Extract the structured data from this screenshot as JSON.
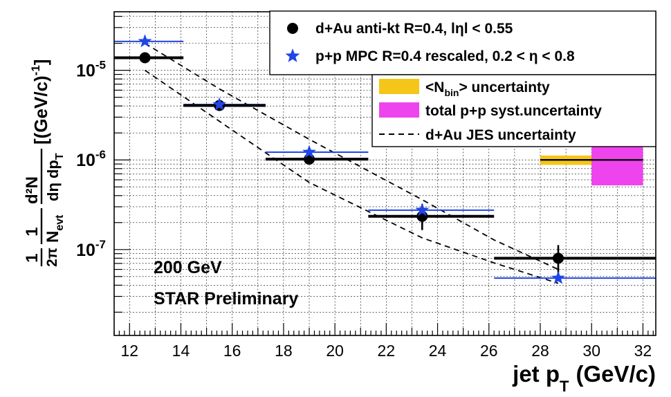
{
  "chart_data": {
    "type": "scatter",
    "xlabel": "jet p",
    "xlabel_sub": "T",
    "xlabel_units": "(GeV/c)",
    "ylabel": {
      "frac1_num": "1",
      "frac1_den": "2π",
      "frac2_num": "1",
      "frac2_den": "N",
      "frac2_den_sub": "evt",
      "frac3_num": "d²N",
      "frac3_den": "dη dp",
      "frac3_den_sub": "T",
      "units": "[(GeV/c)",
      "units_exp": "-1",
      "units_close": "]"
    },
    "xlim": [
      11.4,
      32.5
    ],
    "ylim": [
      1.1e-08,
      4.5e-05
    ],
    "yscale": "log",
    "grid": true,
    "x_ticks": [
      12,
      14,
      16,
      18,
      20,
      22,
      24,
      26,
      28,
      30,
      32
    ],
    "x_tick_labels": [
      "12",
      "14",
      "16",
      "18",
      "20",
      "22",
      "24",
      "26",
      "28",
      "30",
      "32"
    ],
    "y_major_ticks": [
      1e-07,
      1e-06,
      1e-05
    ],
    "y_tick_labels": [
      {
        "base": "10",
        "exp": "-7"
      },
      {
        "base": "10",
        "exp": "-6"
      },
      {
        "base": "10",
        "exp": "-5"
      }
    ],
    "series": [
      {
        "name": "d+Au anti-kt R=0.4, lηl < 0.55",
        "marker": "circle",
        "color": "#000000",
        "points": [
          {
            "x": 12.6,
            "y": 1.38e-05,
            "xlo": 11.4,
            "xhi": 14.1
          },
          {
            "x": 15.5,
            "y": 4.05e-06,
            "xlo": 14.1,
            "xhi": 17.3
          },
          {
            "x": 19.0,
            "y": 1.02e-06,
            "xlo": 17.3,
            "xhi": 21.3
          },
          {
            "x": 23.4,
            "y": 2.35e-07,
            "xlo": 21.3,
            "xhi": 26.2,
            "ylo": 1.65e-07,
            "yhi": 3.2e-07
          },
          {
            "x": 28.7,
            "y": 8e-08,
            "xlo": 26.2,
            "xhi": 32.5,
            "ylo": 5.5e-08,
            "yhi": 1.12e-07
          }
        ]
      },
      {
        "name": "p+p MPC R=0.4 rescaled, 0.2 < η < 0.8",
        "marker": "star",
        "color": "#2046e6",
        "points": [
          {
            "x": 12.6,
            "y": 2.1e-05,
            "xlo": 11.4,
            "xhi": 14.1
          },
          {
            "x": 15.5,
            "y": 4.15e-06,
            "xlo": 14.1,
            "xhi": 17.3
          },
          {
            "x": 19.0,
            "y": 1.22e-06,
            "xlo": 17.3,
            "xhi": 21.3
          },
          {
            "x": 23.4,
            "y": 2.75e-07,
            "xlo": 21.3,
            "xhi": 26.2,
            "ylo": 2.5e-07,
            "yhi": 3.05e-07
          },
          {
            "x": 28.7,
            "y": 4.8e-08,
            "xlo": 26.2,
            "xhi": 32.5
          }
        ]
      }
    ],
    "jes_band": {
      "name": "d+Au JES uncertainty",
      "upper": [
        [
          12.6,
          2e-05
        ],
        [
          15.5,
          6.2e-06
        ],
        [
          19.0,
          1.7e-06
        ],
        [
          23.4,
          3.6e-07
        ],
        [
          26.2,
          1.28e-07
        ],
        [
          28.7,
          6e-08
        ]
      ],
      "lower": [
        [
          12.6,
          1e-05
        ],
        [
          15.5,
          2.7e-06
        ],
        [
          19.0,
          5.6e-07
        ],
        [
          23.4,
          1.35e-07
        ],
        [
          26.2,
          7.1e-08
        ],
        [
          28.7,
          4.2e-08
        ]
      ]
    },
    "norm_uncertainty": {
      "y": 1e-06,
      "nbin_box": {
        "label": "<N_bin> uncertainty",
        "x0": 28.0,
        "x1": 30.0,
        "ylo": 8.8e-07,
        "yhi": 1.12e-06,
        "color": "#f5c518"
      },
      "pp_box": {
        "label": "total p+p syst.uncertainty",
        "x0": 30.0,
        "x1": 32.0,
        "ylo": 5.2e-07,
        "yhi": 1.55e-06,
        "color": "#ee44ee"
      },
      "line_x": [
        28.0,
        32.0
      ]
    },
    "legend_top": {
      "entries": [
        {
          "marker": "circle",
          "label": "d+Au anti-kt R=0.4, lηl < 0.55"
        },
        {
          "marker": "star",
          "label": "p+p MPC R=0.4 rescaled, 0.2 < η < 0.8"
        }
      ],
      "placement": "top-right"
    },
    "legend_bottom": {
      "entries": [
        {
          "type": "box-yellow",
          "label_pre": "<N",
          "label_sub": "bin",
          "label_post": "> uncertainty"
        },
        {
          "type": "box-magenta",
          "label": "total p+p syst.uncertainty"
        },
        {
          "type": "dashed",
          "label": "d+Au JES uncertainty"
        }
      ],
      "placement": "top-right"
    },
    "annotations": [
      "200 GeV",
      "STAR Preliminary"
    ]
  }
}
